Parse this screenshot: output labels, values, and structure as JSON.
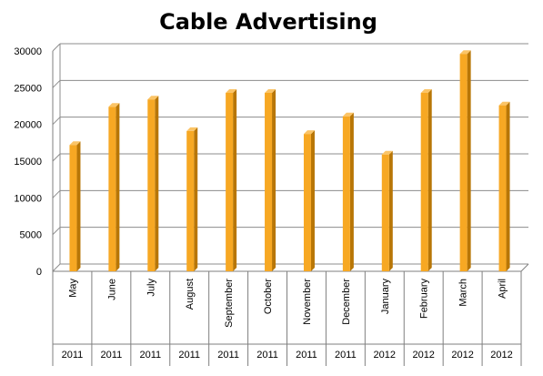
{
  "chart_data": {
    "type": "bar",
    "title": "Cable Advertising",
    "xlabel": "",
    "ylabel": "",
    "ylim": [
      0,
      30000
    ],
    "yticks": [
      "0",
      "5000",
      "10000",
      "15000",
      "20000",
      "25000",
      "30000"
    ],
    "categories": [
      "May",
      "June",
      "July",
      "August",
      "September",
      "October",
      "November",
      "December",
      "January",
      "February",
      "March",
      "April"
    ],
    "years": [
      "2011",
      "2011",
      "2011",
      "2011",
      "2011",
      "2011",
      "2011",
      "2011",
      "2012",
      "2012",
      "2012",
      "2012"
    ],
    "values": [
      17200,
      22400,
      23400,
      19100,
      24300,
      24300,
      18700,
      21100,
      15900,
      24300,
      29600,
      22600
    ],
    "grid": true,
    "legend": "none",
    "colors": {
      "bar_front": "#F7A823",
      "bar_side": "#B87606",
      "bar_top": "#FBC466",
      "grid": "#8C8C8C",
      "axis": "#7F7F7F"
    }
  }
}
